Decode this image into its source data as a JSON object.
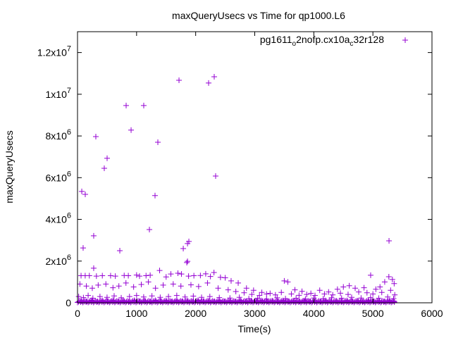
{
  "chart_data": {
    "type": "scatter",
    "title": "maxQueryUsecs vs Time for qp1000.L6",
    "xlabel": "Time(s)",
    "ylabel": "maxQueryUsecs",
    "xlim": [
      0,
      6000
    ],
    "ylim": [
      0,
      13000000
    ],
    "grid": false,
    "legend_position": "top-right",
    "x_ticks": [
      {
        "value": 0,
        "label": "0"
      },
      {
        "value": 1000,
        "label": "1000"
      },
      {
        "value": 2000,
        "label": "2000"
      },
      {
        "value": 3000,
        "label": "3000"
      },
      {
        "value": 4000,
        "label": "4000"
      },
      {
        "value": 5000,
        "label": "5000"
      },
      {
        "value": 6000,
        "label": "6000"
      }
    ],
    "y_ticks": [
      {
        "value": 0,
        "label": "0",
        "exp": ""
      },
      {
        "value": 2000000,
        "label": "2x10",
        "exp": "6"
      },
      {
        "value": 4000000,
        "label": "4x10",
        "exp": "6"
      },
      {
        "value": 6000000,
        "label": "6x10",
        "exp": "6"
      },
      {
        "value": 8000000,
        "label": "8x10",
        "exp": "6"
      },
      {
        "value": 10000000,
        "label": "1x10",
        "exp": "7"
      },
      {
        "value": 12000000,
        "label": "1.2x10",
        "exp": "7"
      }
    ],
    "series": [
      {
        "name": "pg1611_o2nofp.cx10a_c32r128",
        "color": "#9400d3",
        "marker": "plus",
        "points": [
          [
            72,
            5340000
          ],
          [
            131,
            5200000
          ],
          [
            95,
            2630000
          ],
          [
            274,
            1660000
          ],
          [
            274,
            3210000
          ],
          [
            310,
            7970000
          ],
          [
            453,
            6450000
          ],
          [
            501,
            6930000
          ],
          [
            716,
            2500000
          ],
          [
            823,
            9460000
          ],
          [
            907,
            8280000
          ],
          [
            1121,
            9460000
          ],
          [
            1217,
            3510000
          ],
          [
            1312,
            5140000
          ],
          [
            1360,
            7700000
          ],
          [
            1718,
            10670000
          ],
          [
            1790,
            2600000
          ],
          [
            1850,
            1930000
          ],
          [
            1862,
            2840000
          ],
          [
            1885,
            2940000
          ],
          [
            2219,
            10540000
          ],
          [
            2314,
            10840000
          ],
          [
            2338,
            6080000
          ],
          [
            5273,
            2970000
          ],
          [
            4962,
            1320000
          ],
          [
            1862,
            1990000
          ],
          [
            60,
            1300000
          ],
          [
            130,
            1300000
          ],
          [
            200,
            1300000
          ],
          [
            320,
            1280000
          ],
          [
            420,
            1300000
          ],
          [
            560,
            1300000
          ],
          [
            640,
            1280000
          ],
          [
            790,
            1310000
          ],
          [
            860,
            1300000
          ],
          [
            1000,
            1330000
          ],
          [
            1050,
            1280000
          ],
          [
            1160,
            1300000
          ],
          [
            1230,
            1320000
          ],
          [
            1390,
            1550000
          ],
          [
            1500,
            1240000
          ],
          [
            1580,
            1380000
          ],
          [
            1700,
            1420000
          ],
          [
            1760,
            1380000
          ],
          [
            1880,
            1280000
          ],
          [
            1970,
            1300000
          ],
          [
            2080,
            1310000
          ],
          [
            2170,
            1390000
          ],
          [
            2250,
            1260000
          ],
          [
            2310,
            1450000
          ],
          [
            2420,
            1220000
          ],
          [
            2500,
            1200000
          ],
          [
            2600,
            1050000
          ],
          [
            2720,
            950000
          ],
          [
            2860,
            700000
          ],
          [
            2980,
            600000
          ],
          [
            3120,
            500000
          ],
          [
            3260,
            450000
          ],
          [
            3500,
            1050000
          ],
          [
            3560,
            1000000
          ],
          [
            3680,
            620000
          ],
          [
            3800,
            550000
          ],
          [
            3950,
            450000
          ],
          [
            4100,
            600000
          ],
          [
            4250,
            520000
          ],
          [
            4400,
            650000
          ],
          [
            4500,
            760000
          ],
          [
            4600,
            820000
          ],
          [
            4700,
            700000
          ],
          [
            4850,
            720000
          ],
          [
            5050,
            650000
          ],
          [
            5120,
            760000
          ],
          [
            5200,
            1000000
          ],
          [
            5270,
            1250000
          ],
          [
            5330,
            1120000
          ],
          [
            5360,
            920000
          ],
          [
            40,
            900000
          ],
          [
            150,
            800000
          ],
          [
            250,
            700000
          ],
          [
            350,
            850000
          ],
          [
            480,
            900000
          ],
          [
            600,
            720000
          ],
          [
            700,
            800000
          ],
          [
            820,
            950000
          ],
          [
            950,
            760000
          ],
          [
            1080,
            880000
          ],
          [
            1200,
            1000000
          ],
          [
            1320,
            700000
          ],
          [
            1450,
            850000
          ],
          [
            1620,
            900000
          ],
          [
            1750,
            800000
          ],
          [
            1920,
            860000
          ],
          [
            2050,
            780000
          ],
          [
            2200,
            950000
          ],
          [
            2380,
            700000
          ],
          [
            2550,
            620000
          ],
          [
            2680,
            540000
          ],
          [
            2820,
            480000
          ],
          [
            2950,
            400000
          ],
          [
            3080,
            350000
          ],
          [
            3200,
            420000
          ],
          [
            3350,
            380000
          ],
          [
            3450,
            500000
          ],
          [
            3620,
            420000
          ],
          [
            3750,
            360000
          ],
          [
            3880,
            400000
          ],
          [
            4020,
            350000
          ],
          [
            4180,
            420000
          ],
          [
            4320,
            380000
          ],
          [
            4450,
            460000
          ],
          [
            4580,
            400000
          ],
          [
            4760,
            520000
          ],
          [
            4900,
            480000
          ],
          [
            5000,
            420000
          ],
          [
            5150,
            500000
          ],
          [
            5300,
            600000
          ],
          [
            5370,
            380000
          ],
          [
            20,
            300000
          ],
          [
            100,
            250000
          ],
          [
            180,
            350000
          ],
          [
            260,
            220000
          ],
          [
            380,
            300000
          ],
          [
            500,
            260000
          ],
          [
            620,
            330000
          ],
          [
            740,
            240000
          ],
          [
            880,
            300000
          ],
          [
            1000,
            350000
          ],
          [
            1120,
            280000
          ],
          [
            1260,
            330000
          ],
          [
            1400,
            260000
          ],
          [
            1540,
            300000
          ],
          [
            1680,
            350000
          ],
          [
            1820,
            280000
          ],
          [
            1960,
            320000
          ],
          [
            2100,
            260000
          ],
          [
            2240,
            300000
          ],
          [
            2400,
            250000
          ],
          [
            2580,
            230000
          ],
          [
            2740,
            260000
          ],
          [
            2900,
            200000
          ],
          [
            3050,
            220000
          ],
          [
            3200,
            180000
          ],
          [
            3380,
            240000
          ],
          [
            3520,
            200000
          ],
          [
            3700,
            220000
          ],
          [
            3860,
            180000
          ],
          [
            4000,
            230000
          ],
          [
            4160,
            200000
          ],
          [
            4300,
            240000
          ],
          [
            4470,
            220000
          ],
          [
            4640,
            260000
          ],
          [
            4800,
            230000
          ],
          [
            4960,
            250000
          ],
          [
            5100,
            220000
          ],
          [
            5250,
            280000
          ],
          [
            5350,
            200000
          ],
          [
            0,
            20000
          ],
          [
            60,
            100000
          ],
          [
            150,
            60000
          ],
          [
            240,
            120000
          ],
          [
            330,
            50000
          ],
          [
            420,
            110000
          ],
          [
            510,
            70000
          ],
          [
            600,
            130000
          ],
          [
            690,
            60000
          ],
          [
            780,
            100000
          ],
          [
            870,
            50000
          ],
          [
            960,
            120000
          ],
          [
            1050,
            80000
          ],
          [
            1140,
            100000
          ],
          [
            1230,
            60000
          ],
          [
            1320,
            120000
          ],
          [
            1410,
            80000
          ],
          [
            1500,
            110000
          ],
          [
            1590,
            60000
          ],
          [
            1680,
            130000
          ],
          [
            1770,
            70000
          ],
          [
            1860,
            100000
          ],
          [
            1950,
            60000
          ],
          [
            2040,
            120000
          ],
          [
            2130,
            80000
          ],
          [
            2220,
            100000
          ],
          [
            2310,
            60000
          ],
          [
            2400,
            110000
          ],
          [
            2490,
            70000
          ],
          [
            2580,
            100000
          ],
          [
            2670,
            60000
          ],
          [
            2760,
            110000
          ],
          [
            2850,
            70000
          ],
          [
            2940,
            100000
          ],
          [
            3030,
            60000
          ],
          [
            3120,
            110000
          ],
          [
            3210,
            70000
          ],
          [
            3300,
            100000
          ],
          [
            3390,
            60000
          ],
          [
            3480,
            110000
          ],
          [
            3570,
            70000
          ],
          [
            3660,
            100000
          ],
          [
            3750,
            60000
          ],
          [
            3840,
            110000
          ],
          [
            3930,
            70000
          ],
          [
            4020,
            100000
          ],
          [
            4110,
            60000
          ],
          [
            4200,
            110000
          ],
          [
            4290,
            70000
          ],
          [
            4380,
            100000
          ],
          [
            4470,
            60000
          ],
          [
            4560,
            110000
          ],
          [
            4650,
            70000
          ],
          [
            4740,
            100000
          ],
          [
            4830,
            60000
          ],
          [
            4920,
            110000
          ],
          [
            5010,
            70000
          ],
          [
            5100,
            100000
          ],
          [
            5190,
            60000
          ],
          [
            5280,
            110000
          ],
          [
            5360,
            70000
          ]
        ]
      }
    ]
  }
}
